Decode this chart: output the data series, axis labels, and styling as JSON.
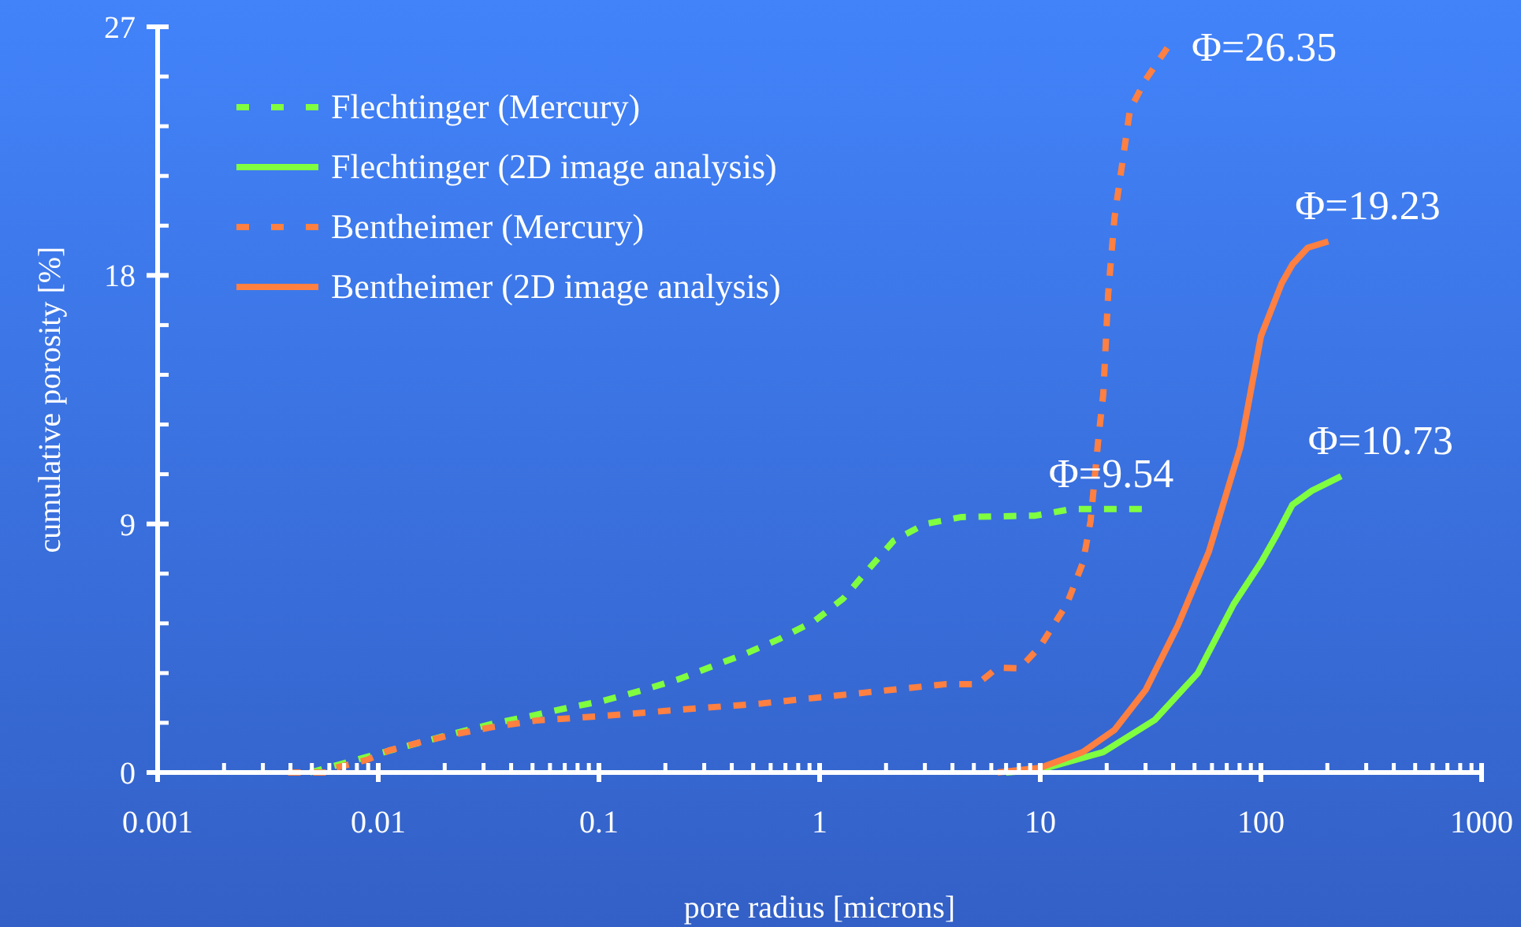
{
  "chart_data": {
    "type": "line",
    "xlabel": "pore radius [microns]",
    "ylabel": "cumulative porosity [%]",
    "log": "x",
    "legend": "top left",
    "grid": false,
    "marker": "none",
    "xlim": [
      0.001,
      1000
    ],
    "ylim": [
      0,
      27
    ],
    "xticks": [
      0.001,
      {
        "value": 0.002,
        "label": null
      },
      {
        "value": 0.003,
        "label": null
      },
      {
        "value": 0.004,
        "label": null
      },
      {
        "value": 0.005,
        "label": null
      },
      {
        "value": 0.006,
        "label": null
      },
      {
        "value": 0.007,
        "label": null
      },
      {
        "value": 0.008,
        "label": null
      },
      {
        "value": 0.009,
        "label": null
      },
      0.01,
      {
        "value": 0.02,
        "label": null
      },
      {
        "value": 0.03,
        "label": null
      },
      {
        "value": 0.04,
        "label": null
      },
      {
        "value": 0.05,
        "label": null
      },
      {
        "value": 0.06,
        "label": null
      },
      {
        "value": 0.07,
        "label": null
      },
      {
        "value": 0.08,
        "label": null
      },
      {
        "value": 0.09,
        "label": null
      },
      0.1,
      {
        "value": 0.2,
        "label": null
      },
      {
        "value": 0.3,
        "label": null
      },
      {
        "value": 0.4,
        "label": null
      },
      {
        "value": 0.5,
        "label": null
      },
      {
        "value": 0.6,
        "label": null
      },
      {
        "value": 0.7,
        "label": null
      },
      {
        "value": 0.8,
        "label": null
      },
      {
        "value": 0.9,
        "label": null
      },
      1,
      {
        "value": 2,
        "label": null
      },
      {
        "value": 3,
        "label": null
      },
      {
        "value": 4,
        "label": null
      },
      {
        "value": 5,
        "label": null
      },
      {
        "value": 6,
        "label": null
      },
      {
        "value": 7,
        "label": null
      },
      {
        "value": 8,
        "label": null
      },
      {
        "value": 9,
        "label": null
      },
      10,
      {
        "value": 20,
        "label": null
      },
      {
        "value": 30,
        "label": null
      },
      {
        "value": 40,
        "label": null
      },
      {
        "value": 50,
        "label": null
      },
      {
        "value": 60,
        "label": null
      },
      {
        "value": 70,
        "label": null
      },
      {
        "value": 80,
        "label": null
      },
      {
        "value": 90,
        "label": null
      },
      100,
      {
        "value": 200,
        "label": null
      },
      {
        "value": 300,
        "label": null
      },
      {
        "value": 400,
        "label": null
      },
      {
        "value": 500,
        "label": null
      },
      {
        "value": 600,
        "label": null
      },
      {
        "value": 700,
        "label": null
      },
      {
        "value": 800,
        "label": null
      },
      {
        "value": 900,
        "label": null
      },
      1000
    ],
    "yticks": [
      0,
      {
        "value": 1.8,
        "label": null
      },
      {
        "value": 3.6,
        "label": null
      },
      {
        "value": 5.4,
        "label": null
      },
      {
        "value": 7.2,
        "label": null
      },
      9,
      {
        "value": 10.8,
        "label": null
      },
      {
        "value": 12.6,
        "label": null
      },
      {
        "value": 14.4,
        "label": null
      },
      {
        "value": 16.2,
        "label": null
      },
      18,
      {
        "value": 19.8,
        "label": null
      },
      {
        "value": 21.6,
        "label": null
      },
      {
        "value": 23.4,
        "label": null
      },
      {
        "value": 25.2,
        "label": null
      },
      27
    ],
    "series": [
      {
        "name": "Flechtinger (Mercury)",
        "color": "#80ff40",
        "line_style": "dashed",
        "x": [
          0.0049,
          0.01,
          0.0217,
          0.0332,
          0.0493,
          0.072,
          0.105,
          0.156,
          0.228,
          0.316,
          0.461,
          0.663,
          0.953,
          1.28,
          1.64,
          2.17,
          3.01,
          4.4,
          9.5,
          13.9,
          30
        ],
        "values": [
          0,
          0.68,
          1.4,
          1.77,
          2.05,
          2.34,
          2.6,
          2.97,
          3.37,
          3.8,
          4.3,
          4.85,
          5.5,
          6.3,
          7.3,
          8.4,
          9.0,
          9.25,
          9.3,
          9.54,
          9.54
        ]
      },
      {
        "name": "Flechtinger (2D image analysis)",
        "color": "#80ff40",
        "line_style": "solid",
        "x": [
          7,
          10,
          19.3,
          33,
          51.8,
          75.3,
          100,
          117,
          139,
          170,
          231
        ],
        "values": [
          0,
          0.1,
          0.74,
          1.9,
          3.6,
          6.1,
          7.6,
          8.56,
          9.7,
          10.2,
          10.73
        ]
      },
      {
        "name": "Bentheimer (Mercury)",
        "color": "#ff8040",
        "line_style": "dashed",
        "x": [
          0.0039,
          0.0061,
          0.0064,
          0.0089,
          0.0112,
          0.0156,
          0.0217,
          0.0332,
          0.0518,
          0.105,
          0.239,
          0.545,
          1.64,
          3.73,
          5.18,
          6.41,
          8.07,
          10,
          13.2,
          15.6,
          16.9,
          18.4,
          19.3,
          20.3,
          21.7,
          25.5,
          30.1,
          38.5
        ],
        "values": [
          0,
          0,
          0.17,
          0.46,
          0.8,
          1.1,
          1.37,
          1.65,
          1.88,
          2.05,
          2.28,
          2.5,
          2.9,
          3.2,
          3.2,
          3.8,
          3.77,
          4.57,
          6.1,
          7.6,
          9.1,
          12.2,
          13.7,
          17.3,
          20.1,
          24,
          25.1,
          26.35
        ]
      },
      {
        "name": "Bentheimer (2D image analysis)",
        "color": "#ff8040",
        "line_style": "solid",
        "x": [
          6.4,
          10,
          15.6,
          21.7,
          30.1,
          41.9,
          58.1,
          80.8,
          100,
          124,
          139,
          163,
          202
        ],
        "values": [
          0,
          0.17,
          0.74,
          1.54,
          3.0,
          5.3,
          8.0,
          11.8,
          15.8,
          17.7,
          18.4,
          19.0,
          19.23
        ]
      }
    ],
    "annotations": [
      {
        "text": "Φ=9.54",
        "x": 13.9,
        "y": 9.54
      },
      {
        "text": "Φ=10.73",
        "x": 231,
        "y": 10.73
      },
      {
        "text": "Φ=19.23",
        "x": 202,
        "y": 19.23
      },
      {
        "text": "Φ=26.35",
        "x": 38.5,
        "y": 26.35
      }
    ]
  }
}
